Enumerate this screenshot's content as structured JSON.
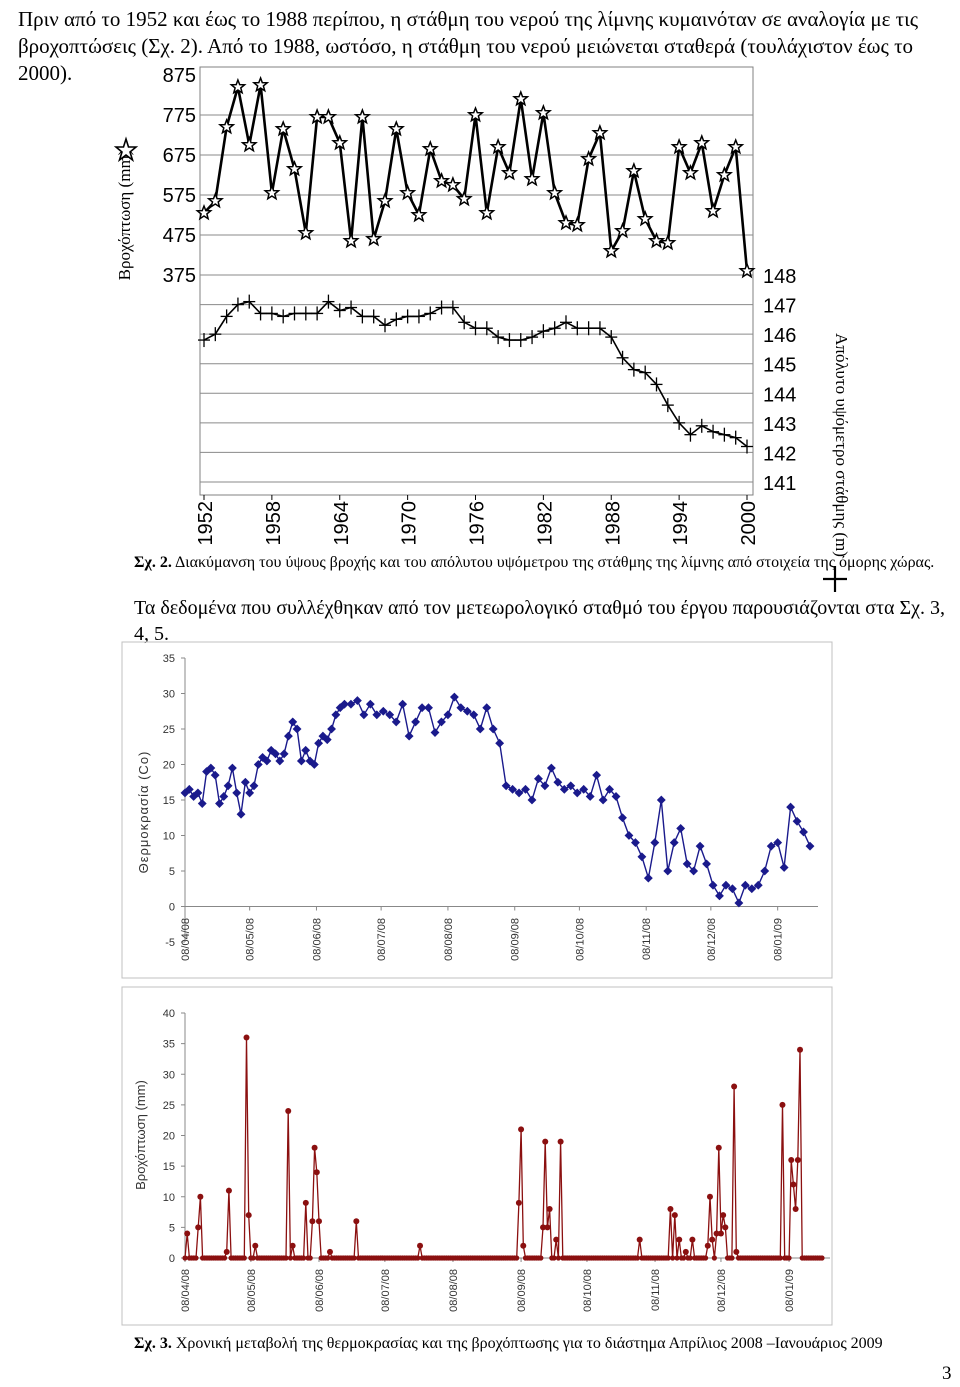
{
  "intro_text": "Πριν από το 1952 και έως το 1988 περίπου, η στάθμη του νερού της λίμνης κυμαινόταν σε αναλογία με τις βροχοπτώσεις (Σχ. 2). Από το 1988, ωστόσο, η στάθμη του νερού μειώνεται σταθερά (τουλάχιστον έως το 2000).",
  "fig2_caption_prefix": "Σχ. 2.",
  "fig2_caption_text": " Διακύμανση του ύψους βροχής και του απόλυτου υψόμετρου της στάθμης της λίμνης από στοιχεία της όμορης χώρας.",
  "mid_text": "Τα δεδομένα που συλλέχθηκαν από τον μετεωρολογικό σταθμό του έργου παρουσιάζονται στα Σχ. 3, 4, 5.",
  "fig3_caption_prefix": "Σχ. 3.",
  "fig3_caption_text": " Χρονική μεταβολή της θερμοκρασίας και της βροχόπτωσης για το διάστημα Απρίλιος 2008 –Ιανουάριος 2009",
  "page_number": "3",
  "colors": {
    "temperature": "#1a1a8c",
    "rainfall": "#8b1010",
    "grid": "#999999"
  },
  "chart_data": [
    {
      "type": "line",
      "ylabel": "Βροχόπτωση (mm)",
      "y2label": "Απόλυτο υψόμετρο στάθμης (m)",
      "yticks": [
        "875",
        "775",
        "675",
        "575",
        "475",
        "375"
      ],
      "y2ticks": [
        "148",
        "147",
        "146",
        "145",
        "144",
        "143",
        "142",
        "141"
      ],
      "xticks": [
        "1952",
        "1958",
        "1964",
        "1970",
        "1976",
        "1982",
        "1988",
        "1994",
        "2000"
      ],
      "ylim": [
        375,
        875
      ],
      "y2lim": [
        141,
        148
      ],
      "x": [
        1952,
        1953,
        1954,
        1955,
        1956,
        1957,
        1958,
        1959,
        1960,
        1961,
        1962,
        1963,
        1964,
        1965,
        1966,
        1967,
        1968,
        1969,
        1970,
        1971,
        1972,
        1973,
        1974,
        1975,
        1976,
        1977,
        1978,
        1979,
        1980,
        1981,
        1982,
        1983,
        1984,
        1985,
        1986,
        1987,
        1988,
        1989,
        1990,
        1991,
        1992,
        1993,
        1994,
        1995,
        1996,
        1997,
        1998,
        1999,
        2000
      ],
      "series": [
        {
          "values": [
            530,
            560,
            745,
            845,
            700,
            850,
            580,
            740,
            640,
            480,
            770,
            770,
            705,
            460,
            770,
            465,
            560,
            740,
            580,
            525,
            690,
            610,
            600,
            565,
            775,
            530,
            695,
            630,
            815,
            615,
            780,
            580,
            505,
            500,
            665,
            730,
            435,
            485,
            635,
            515,
            460,
            455,
            695,
            630,
            705,
            535,
            625,
            695,
            385
          ]
        },
        {
          "values": [
            145.8,
            146.0,
            146.6,
            147.0,
            147.1,
            146.7,
            146.7,
            146.6,
            146.7,
            146.7,
            146.7,
            147.1,
            146.8,
            146.9,
            146.6,
            146.6,
            146.3,
            146.5,
            146.6,
            146.6,
            146.7,
            146.9,
            146.9,
            146.4,
            146.2,
            146.2,
            145.9,
            145.8,
            145.8,
            145.9,
            146.1,
            146.2,
            146.4,
            146.2,
            146.2,
            146.2,
            145.9,
            145.2,
            144.8,
            144.7,
            144.3,
            143.6,
            143.0,
            142.6,
            142.9,
            142.7,
            142.6,
            142.5,
            142.2
          ]
        }
      ]
    },
    {
      "type": "line",
      "ylabel": "Θερμοκρασία (Co)",
      "yticks": [
        "35",
        "30",
        "25",
        "20",
        "15",
        "10",
        "5",
        "0",
        "-5"
      ],
      "ylim": [
        -5,
        35
      ],
      "xticks": [
        "08/04/08",
        "08/05/08",
        "08/06/08",
        "08/07/08",
        "08/08/08",
        "08/09/08",
        "08/10/08",
        "08/11/08",
        "08/12/08",
        "08/01/09"
      ],
      "xlim": [
        "2008-04-08",
        "2009-01-23"
      ],
      "series": [
        {
          "x": [
            "2008-04-08",
            "2008-04-10",
            "2008-04-12",
            "2008-04-14",
            "2008-04-16",
            "2008-04-18",
            "2008-04-20",
            "2008-04-22",
            "2008-04-24",
            "2008-04-26",
            "2008-04-28",
            "2008-04-30",
            "2008-05-02",
            "2008-05-04",
            "2008-05-06",
            "2008-05-08",
            "2008-05-10",
            "2008-05-12",
            "2008-05-14",
            "2008-05-16",
            "2008-05-18",
            "2008-05-20",
            "2008-05-22",
            "2008-05-24",
            "2008-05-26",
            "2008-05-28",
            "2008-05-30",
            "2008-06-01",
            "2008-06-03",
            "2008-06-05",
            "2008-06-07",
            "2008-06-09",
            "2008-06-11",
            "2008-06-13",
            "2008-06-15",
            "2008-06-17",
            "2008-06-19",
            "2008-06-21",
            "2008-06-24",
            "2008-06-27",
            "2008-06-30",
            "2008-07-03",
            "2008-07-06",
            "2008-07-09",
            "2008-07-12",
            "2008-07-15",
            "2008-07-18",
            "2008-07-21",
            "2008-07-24",
            "2008-07-27",
            "2008-07-30",
            "2008-08-02",
            "2008-08-05",
            "2008-08-08",
            "2008-08-11",
            "2008-08-14",
            "2008-08-17",
            "2008-08-20",
            "2008-08-23",
            "2008-08-26",
            "2008-08-29",
            "2008-09-01",
            "2008-09-04",
            "2008-09-07",
            "2008-09-10",
            "2008-09-13",
            "2008-09-16",
            "2008-09-19",
            "2008-09-22",
            "2008-09-25",
            "2008-09-28",
            "2008-10-01",
            "2008-10-04",
            "2008-10-07",
            "2008-10-10",
            "2008-10-13",
            "2008-10-16",
            "2008-10-19",
            "2008-10-22",
            "2008-10-25",
            "2008-10-28",
            "2008-10-31",
            "2008-11-03",
            "2008-11-06",
            "2008-11-09",
            "2008-11-12",
            "2008-11-15",
            "2008-11-18",
            "2008-11-21",
            "2008-11-24",
            "2008-11-27",
            "2008-11-30",
            "2008-12-03",
            "2008-12-06",
            "2008-12-09",
            "2008-12-12",
            "2008-12-15",
            "2008-12-18",
            "2008-12-21",
            "2008-12-24",
            "2008-12-27",
            "2008-12-30",
            "2009-01-02",
            "2009-01-05",
            "2009-01-08",
            "2009-01-11",
            "2009-01-14",
            "2009-01-17",
            "2009-01-20",
            "2009-01-23"
          ],
          "values": [
            16,
            16.5,
            15.5,
            16,
            14.5,
            19,
            19.5,
            18.5,
            14.5,
            15.5,
            17,
            19.5,
            16,
            13,
            17.5,
            16,
            17,
            20,
            21,
            20.5,
            22,
            21.5,
            20.5,
            21.5,
            24,
            26,
            25,
            20.5,
            22,
            20.5,
            20,
            23,
            24,
            23.5,
            25,
            27,
            28,
            28.5,
            28.5,
            29,
            27,
            28.5,
            27,
            27.5,
            27,
            26,
            28.5,
            24,
            26,
            28,
            28,
            24.5,
            26,
            27,
            29.5,
            28,
            27.5,
            27,
            25,
            28,
            25,
            23,
            17,
            16.5,
            16,
            16.5,
            15,
            18,
            17,
            19.5,
            17.5,
            16.5,
            17,
            16,
            16.5,
            15.5,
            18.5,
            15,
            16.5,
            15.5,
            12.5,
            10,
            9,
            7,
            4,
            9,
            15,
            5,
            9,
            11,
            6,
            5,
            8.5,
            6,
            3,
            1.5,
            3,
            2.5,
            0.5,
            3,
            2.5,
            3,
            5,
            8.5,
            9,
            5.5,
            14,
            12,
            10.5,
            8.5
          ]
        }
      ]
    },
    {
      "type": "scatter",
      "ylabel": "Βροχόπτωση (mm)",
      "yticks": [
        "40",
        "35",
        "30",
        "25",
        "20",
        "15",
        "10",
        "5",
        "0"
      ],
      "ylim": [
        0,
        40
      ],
      "xticks": [
        "08/04/08",
        "08/05/08",
        "08/06/08",
        "08/07/08",
        "08/08/08",
        "08/09/08",
        "08/10/08",
        "08/11/08",
        "08/12/08",
        "08/01/09"
      ],
      "xlim": [
        "2008-04-08",
        "2009-01-23"
      ],
      "series": [
        {
          "x": [
            "2008-04-09",
            "2008-04-14",
            "2008-04-15",
            "2008-04-27",
            "2008-04-28",
            "2008-05-06",
            "2008-05-07",
            "2008-05-10",
            "2008-05-25",
            "2008-05-27",
            "2008-06-02",
            "2008-06-05",
            "2008-06-06",
            "2008-06-07",
            "2008-06-08",
            "2008-06-13",
            "2008-06-25",
            "2008-07-24",
            "2008-09-07",
            "2008-09-08",
            "2008-09-09",
            "2008-09-18",
            "2008-09-19",
            "2008-09-20",
            "2008-09-21",
            "2008-09-24",
            "2008-09-26",
            "2008-11-01",
            "2008-11-15",
            "2008-11-17",
            "2008-11-19",
            "2008-11-22",
            "2008-11-25",
            "2008-12-02",
            "2008-12-03",
            "2008-12-04",
            "2008-12-06",
            "2008-12-07",
            "2008-12-08",
            "2008-12-09",
            "2008-12-10",
            "2008-12-14",
            "2008-12-15",
            "2009-01-05",
            "2009-01-09",
            "2009-01-10",
            "2009-01-11",
            "2009-01-12",
            "2009-01-13"
          ],
          "values": [
            4,
            5,
            10,
            1,
            11,
            36,
            7,
            2,
            24,
            2,
            9,
            6,
            18,
            14,
            6,
            1,
            6,
            2,
            9,
            21,
            2,
            5,
            19,
            5,
            8,
            3,
            19,
            3,
            8,
            7,
            3,
            1,
            3,
            2,
            10,
            3,
            4,
            18,
            4,
            7,
            5,
            28,
            1,
            25,
            16,
            12,
            8,
            16,
            34
          ]
        }
      ]
    }
  ]
}
